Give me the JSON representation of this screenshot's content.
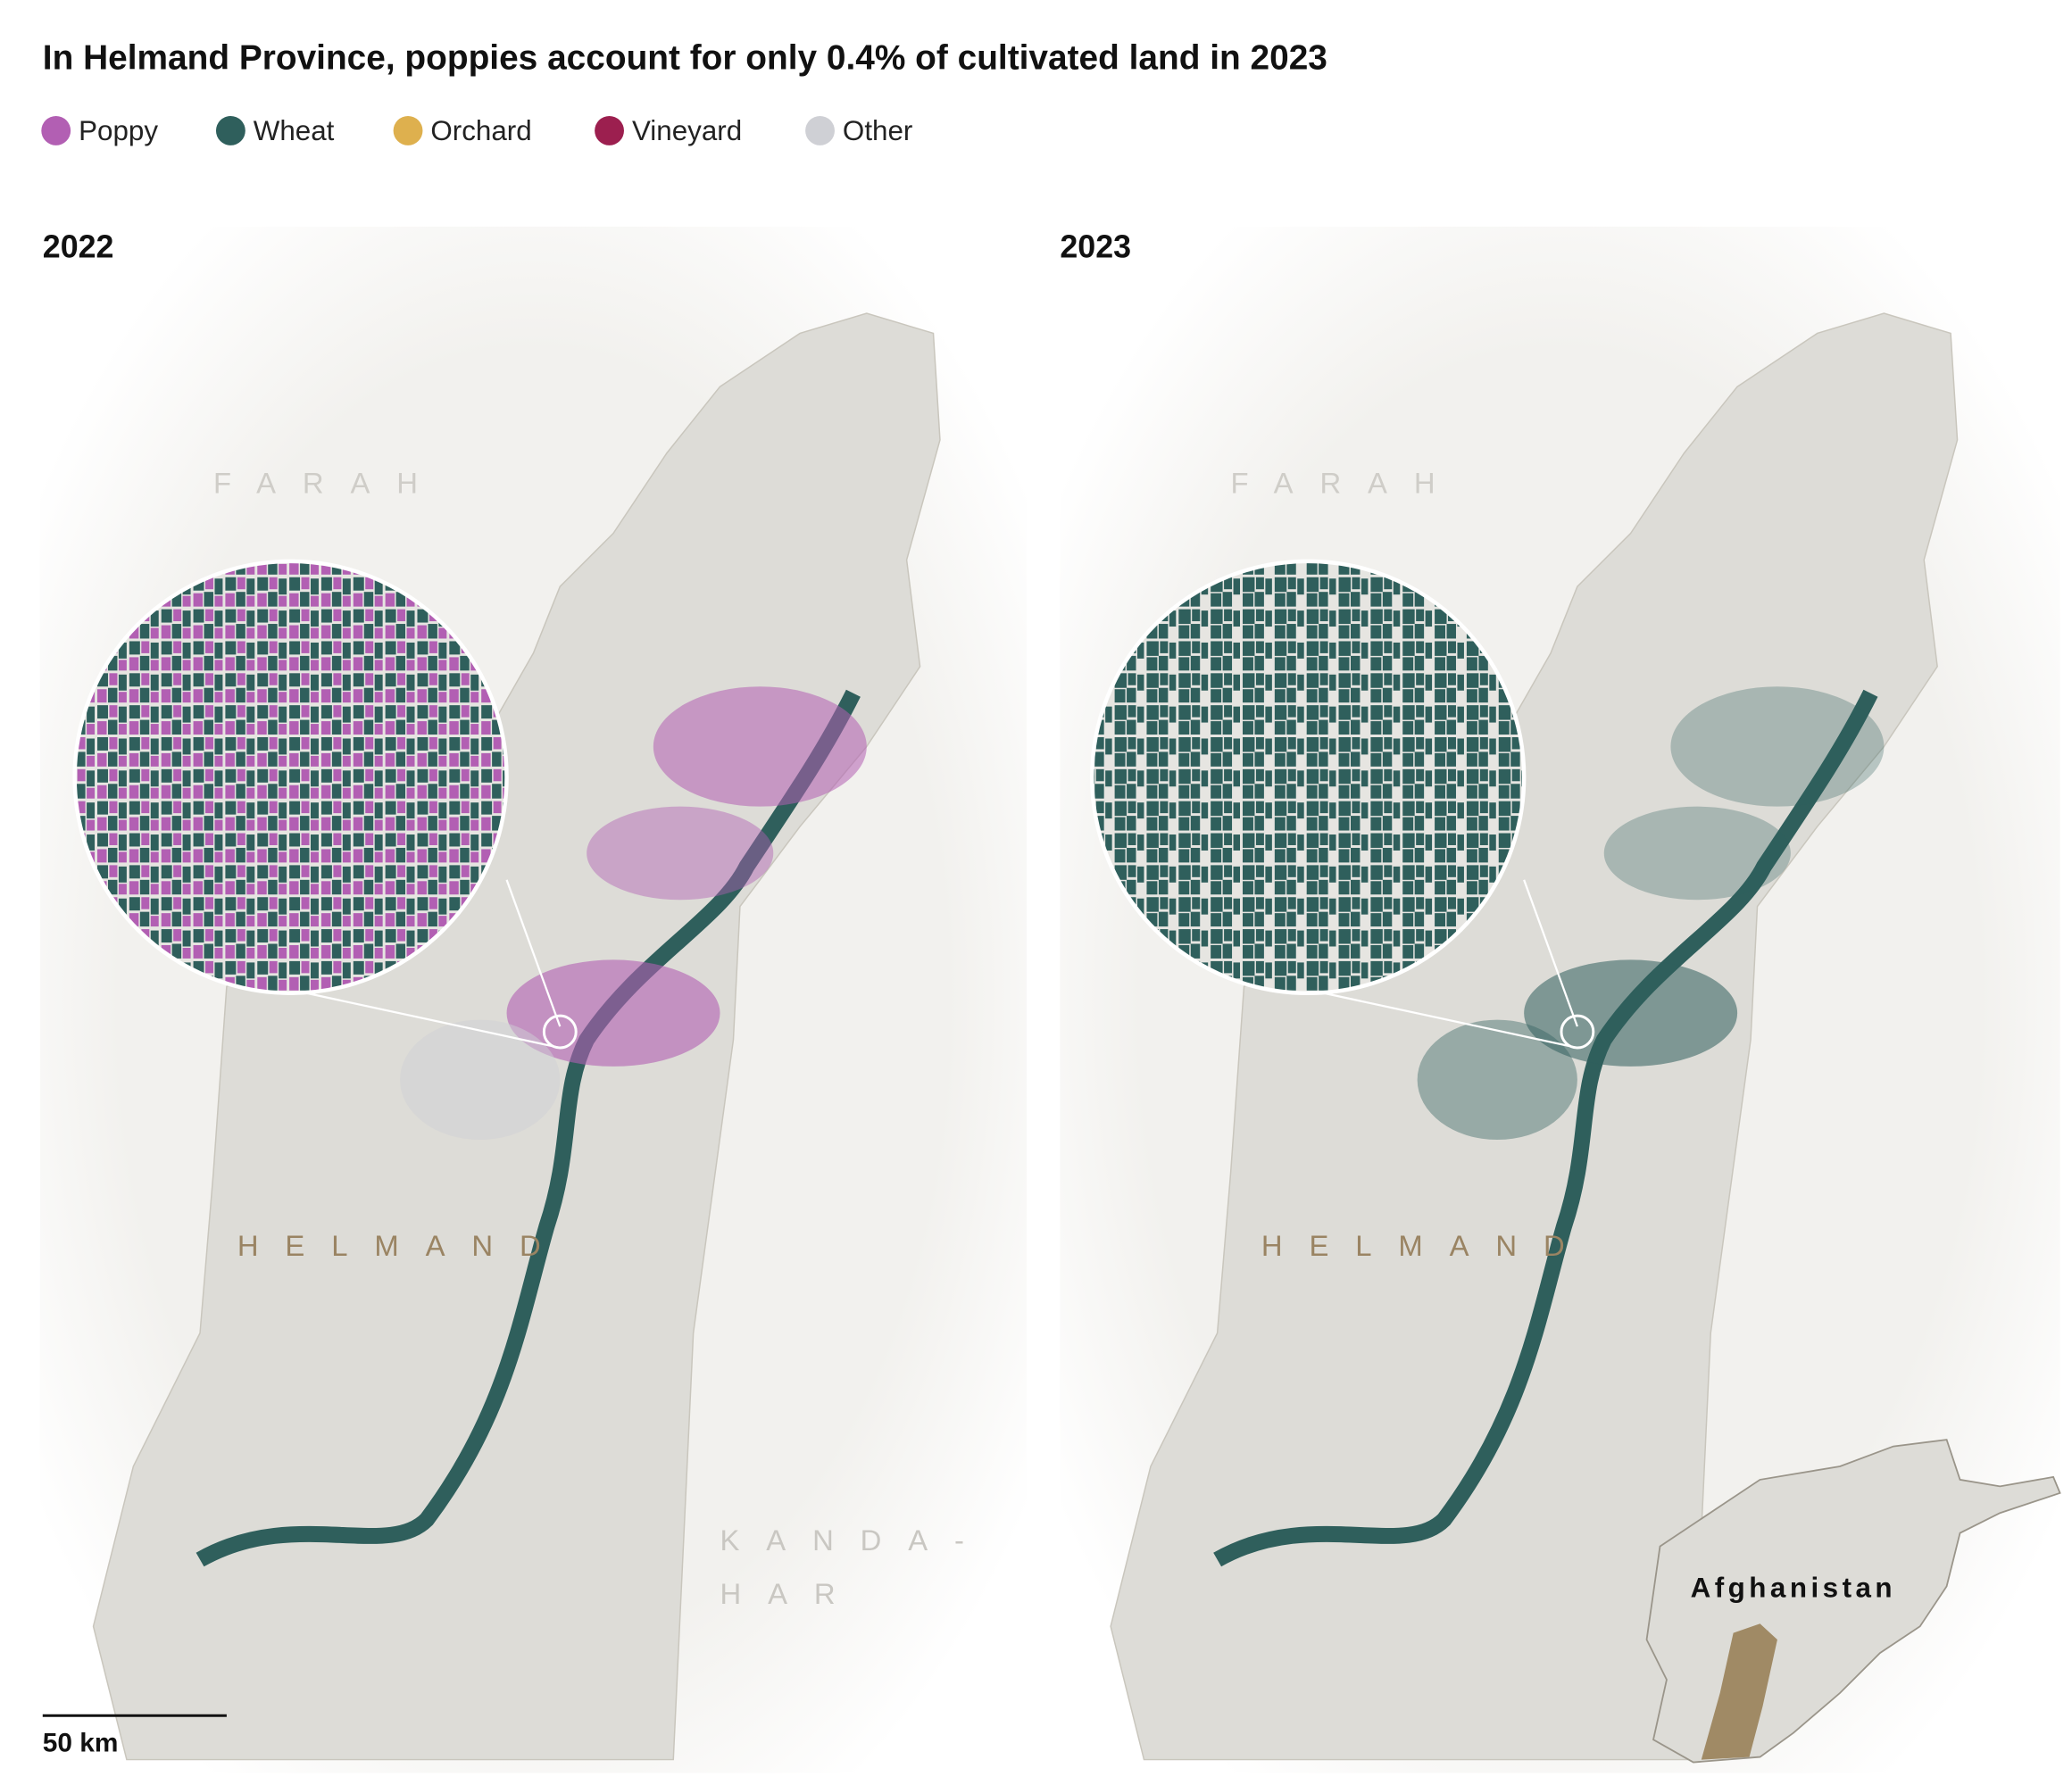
{
  "title": "In Helmand Province, poppies account for only 0.4% of cultivated land in 2023",
  "legend": [
    {
      "name": "Poppy",
      "color": "#b25fb3"
    },
    {
      "name": "Wheat",
      "color": "#2f5f5c"
    },
    {
      "name": "Orchard",
      "color": "#deb04e"
    },
    {
      "name": "Vineyard",
      "color": "#9c1f4f"
    },
    {
      "name": "Other",
      "color": "#cfd0d5"
    }
  ],
  "panels": [
    {
      "year": "2022",
      "farah": "FARAH",
      "helmand": "HELMAND",
      "kandahar": [
        "KANDA-",
        "HAR"
      ]
    },
    {
      "year": "2023",
      "farah": "FARAH",
      "helmand": "HELMAND"
    }
  ],
  "scale_bar": "50 km",
  "inset_label": "Afghanistan"
}
